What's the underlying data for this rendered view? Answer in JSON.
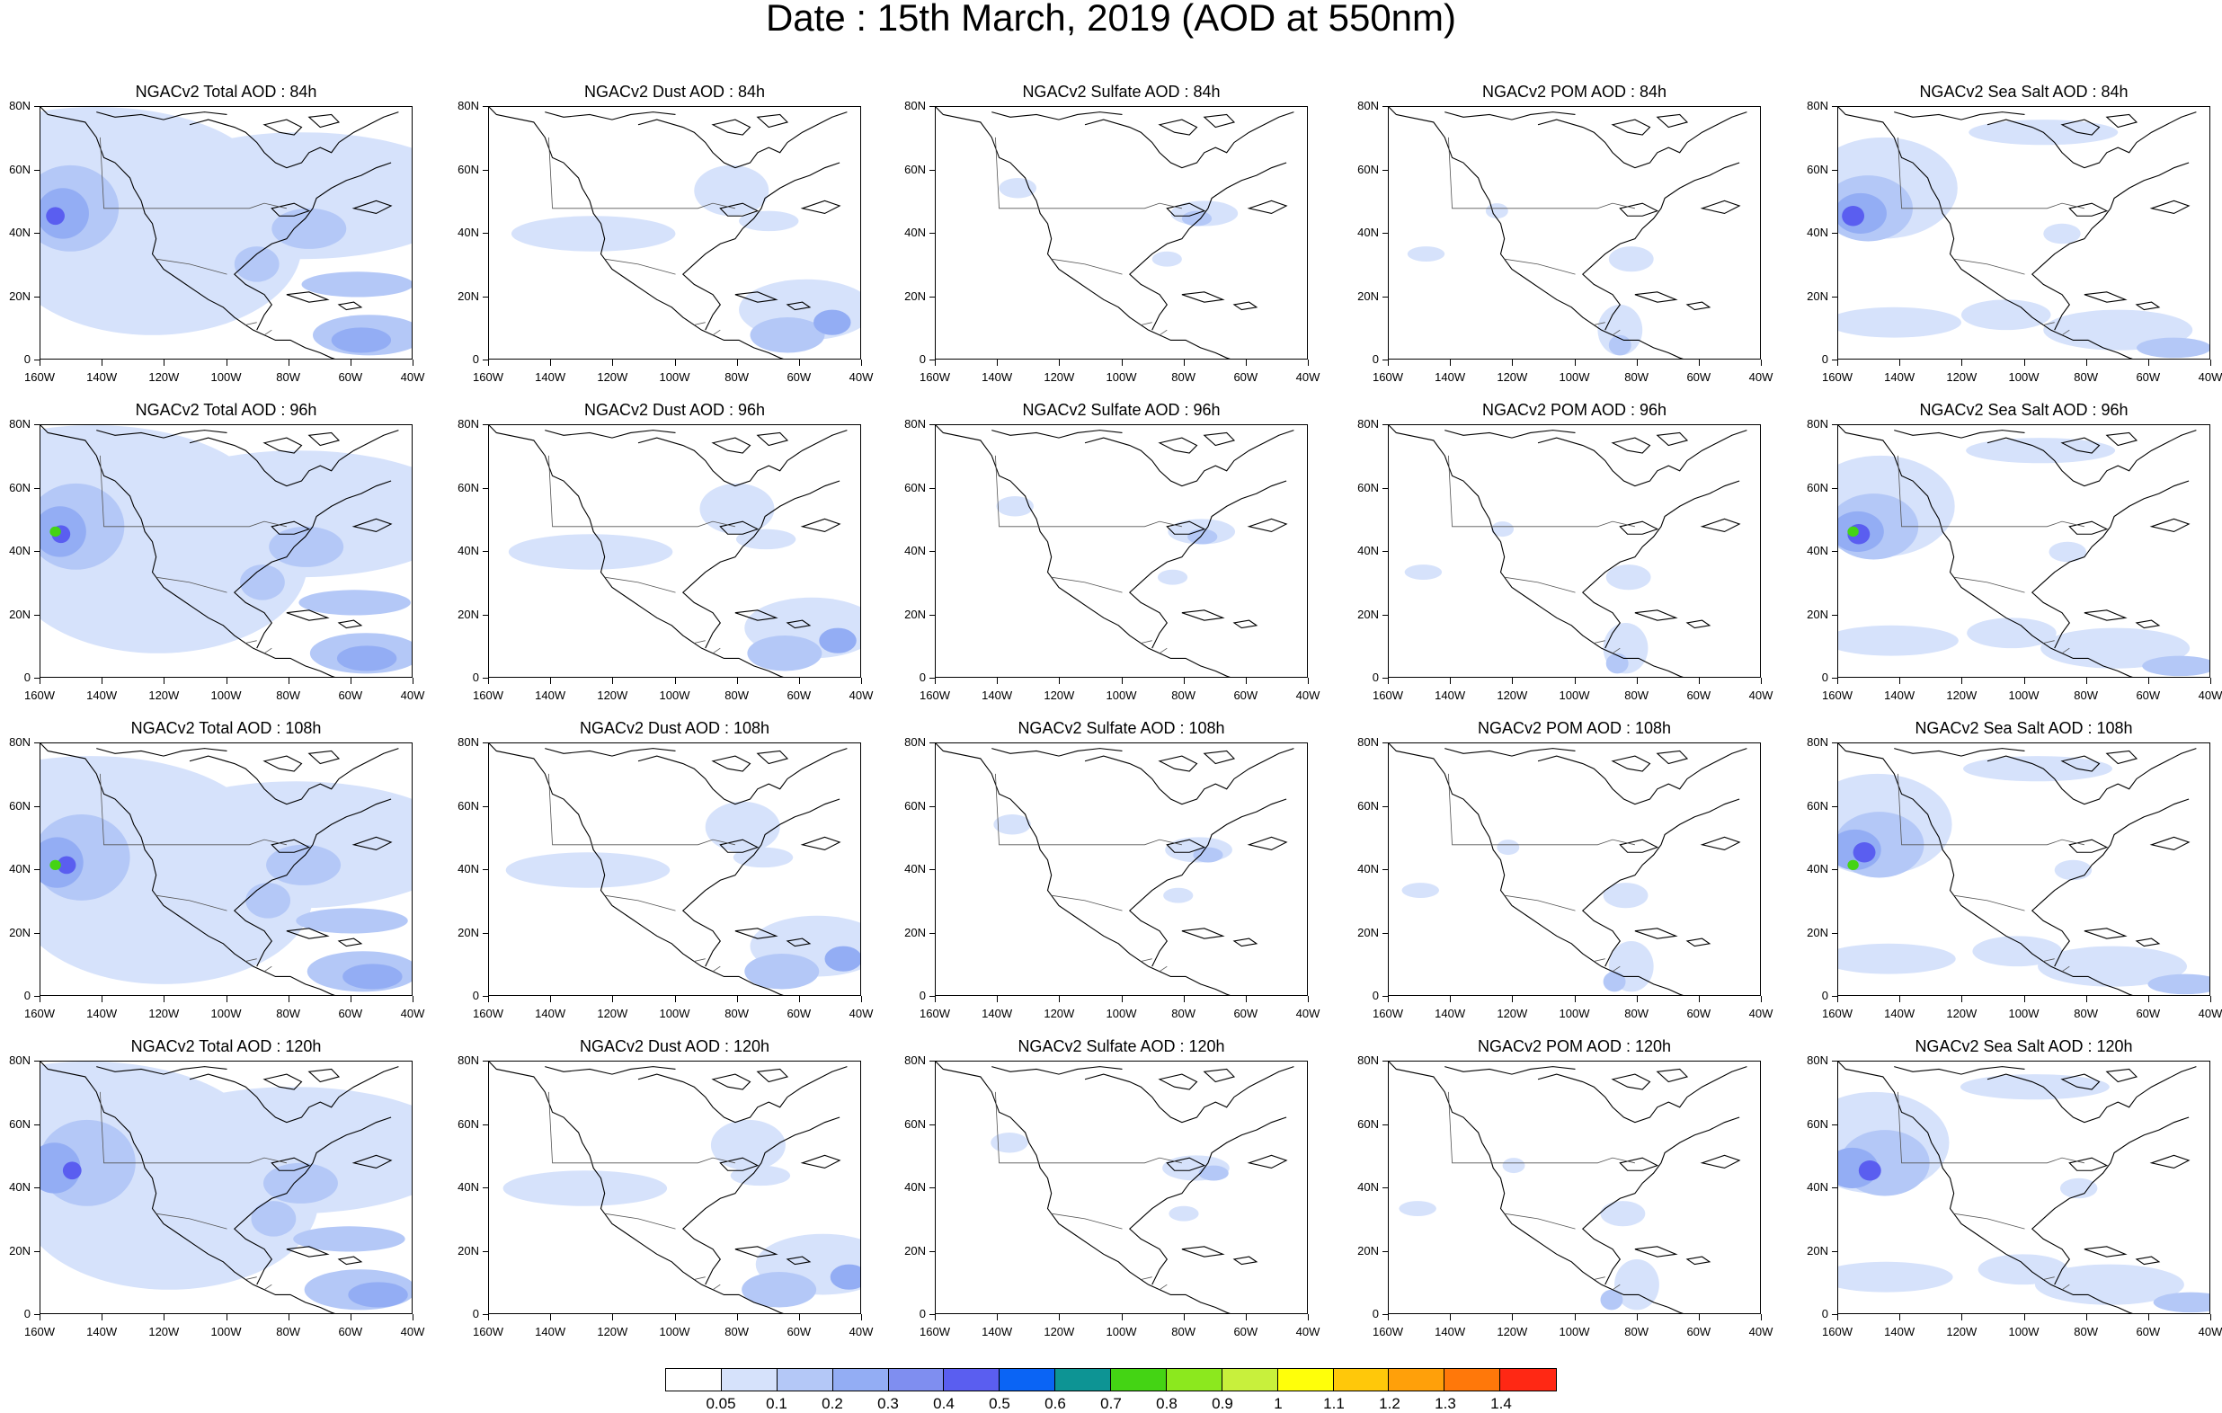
{
  "title": "Date : 15th March, 2019 (AOD at 550nm)",
  "panels": [
    [
      "NGACv2 Total AOD : 84h",
      "NGACv2 Dust AOD : 84h",
      "NGACv2 Sulfate AOD : 84h",
      "NGACv2 POM AOD : 84h",
      "NGACv2 Sea Salt AOD : 84h"
    ],
    [
      "NGACv2 Total AOD : 96h",
      "NGACv2 Dust AOD : 96h",
      "NGACv2 Sulfate AOD : 96h",
      "NGACv2 POM AOD : 96h",
      "NGACv2 Sea Salt AOD : 96h"
    ],
    [
      "NGACv2 Total AOD : 108h",
      "NGACv2 Dust AOD : 108h",
      "NGACv2 Sulfate AOD : 108h",
      "NGACv2 POM AOD : 108h",
      "NGACv2 Sea Salt AOD : 108h"
    ],
    [
      "NGACv2 Total AOD : 120h",
      "NGACv2 Dust AOD : 120h",
      "NGACv2 Sulfate AOD : 120h",
      "NGACv2 POM AOD : 120h",
      "NGACv2 Sea Salt  AOD : 120h"
    ]
  ],
  "lat_labels": [
    "80N",
    "60N",
    "40N",
    "20N",
    "0"
  ],
  "lon_labels": [
    "160W",
    "140W",
    "120W",
    "100W",
    "80W",
    "60W",
    "40W"
  ],
  "colorbar": {
    "labels": [
      "0.05",
      "0.1",
      "0.2",
      "0.3",
      "0.4",
      "0.5",
      "0.6",
      "0.7",
      "0.8",
      "0.9",
      "1",
      "1.1",
      "1.2",
      "1.3",
      "1.4"
    ],
    "colors": [
      "#ffffff",
      "#d6e2fb",
      "#b4c8f7",
      "#93adf4",
      "#7f8ef0",
      "#5a5ef0",
      "#0a64f5",
      "#0d9494",
      "#44d414",
      "#8ce81e",
      "#c8f03c",
      "#ffff0a",
      "#ffc80a",
      "#ffa00a",
      "#ff780a",
      "#ff2814"
    ]
  }
}
